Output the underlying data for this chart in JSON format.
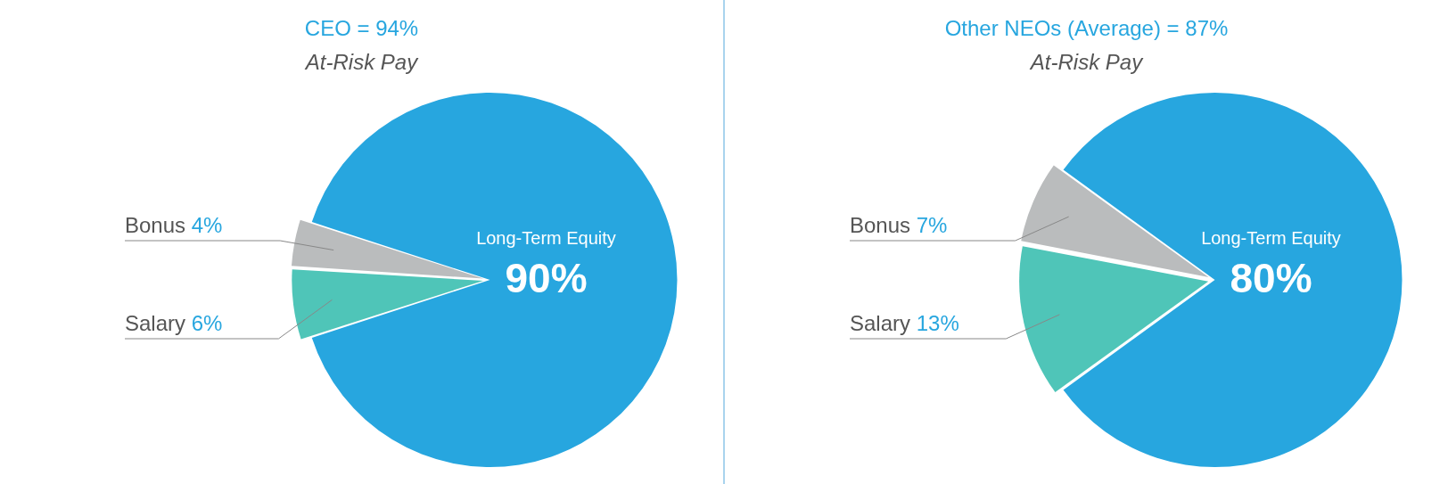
{
  "chart_data": [
    {
      "type": "pie",
      "title": "CEO = 94%",
      "subtitle": "At-Risk Pay",
      "categories": [
        "Salary",
        "Bonus",
        "Long-Term Equity"
      ],
      "values": [
        6,
        4,
        90
      ],
      "colors": [
        "#4fc5b8",
        "#babcbd",
        "#27a6df"
      ],
      "value_labels": [
        "6%",
        "4%",
        "90%"
      ],
      "legend": false
    },
    {
      "type": "pie",
      "title": "Other NEOs (Average) = 87%",
      "subtitle": "At-Risk Pay",
      "categories": [
        "Salary",
        "Bonus",
        "Long-Term Equity"
      ],
      "values": [
        13,
        7,
        80
      ],
      "colors": [
        "#4fc5b8",
        "#babcbd",
        "#27a6df"
      ],
      "value_labels": [
        "13%",
        "7%",
        "80%"
      ],
      "legend": false
    }
  ]
}
